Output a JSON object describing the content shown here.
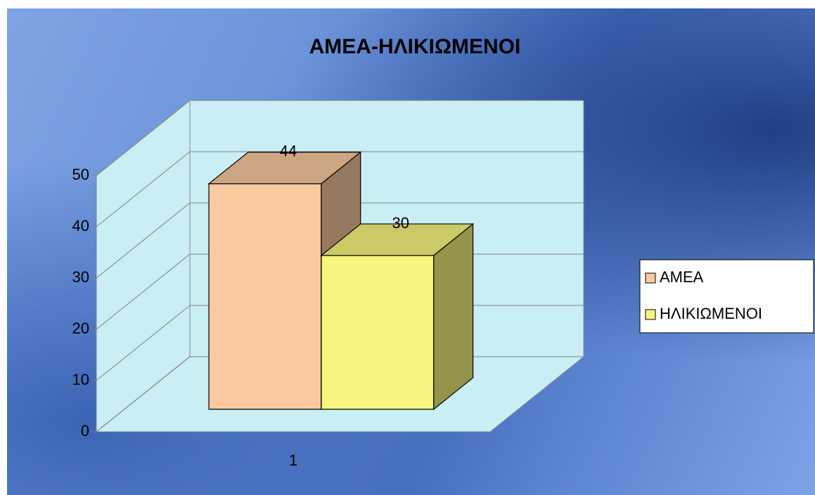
{
  "chart_data": {
    "type": "bar3d",
    "title": "ΑΜΕΑ-ΗΛΙΚΙΩΜΕΝΟΙ",
    "categories": [
      "1"
    ],
    "series": [
      {
        "name": "ΑΜΕΑ",
        "color": "#fbc9a0",
        "values": [
          44
        ]
      },
      {
        "name": "ΗΛΙΚΙΩΜΕΝΟΙ",
        "color": "#f6f67e",
        "values": [
          30
        ]
      }
    ],
    "ylim": [
      0,
      50
    ],
    "yticks": [
      0,
      10,
      20,
      30,
      40,
      50
    ],
    "grid": true,
    "legend": "right"
  }
}
